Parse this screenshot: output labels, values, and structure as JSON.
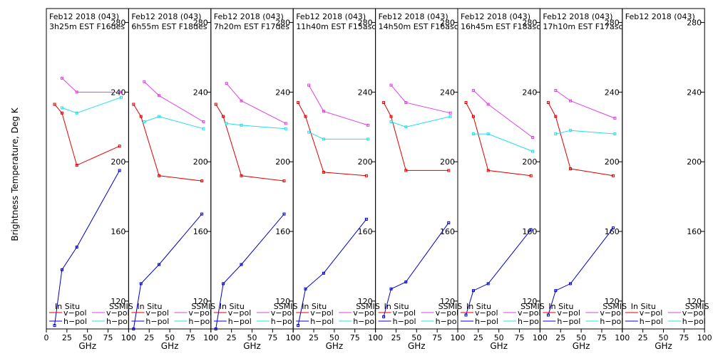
{
  "figure": {
    "ylabel": "Brightness Temperature, Deg K",
    "xlabel": "GHz",
    "legend": {
      "left_header": "In Situ",
      "right_header": "SSMIS",
      "vpol": "v−pol",
      "hpol": "h−pol"
    },
    "x_ticks": [
      "0",
      "25",
      "50",
      "75",
      "100"
    ],
    "y_ticks": [
      "120",
      "160",
      "200",
      "240",
      "280"
    ],
    "colors": {
      "insitu_v": "#e00000",
      "insitu_h": "#0000cc",
      "ssmis_v": "#e040e0",
      "ssmis_h": "#20e0e8",
      "axes": "#000000"
    }
  },
  "chart_data": {
    "type": "line",
    "xlim": [
      0,
      100
    ],
    "ylim": [
      104,
      288
    ],
    "grid": false,
    "legend_position": "bottom",
    "panels": [
      {
        "title1": "Feb12 2018 (043)",
        "title2": "3h25m  EST  F16des",
        "insitu_v": {
          "x": [
            10,
            19,
            37,
            89
          ],
          "y": [
            233,
            228,
            198,
            209
          ]
        },
        "insitu_h": {
          "x": [
            10,
            19,
            37,
            89
          ],
          "y": [
            106,
            138,
            151,
            195
          ]
        },
        "ssmis_v": {
          "x": [
            19,
            37,
            91
          ],
          "y": [
            248,
            240,
            240
          ]
        },
        "ssmis_h": {
          "x": [
            19,
            37,
            91
          ],
          "y": [
            231,
            228,
            237
          ]
        }
      },
      {
        "title1": "Feb12 2018 (043)",
        "title2": "6h55m  EST  F18des",
        "insitu_v": {
          "x": [
            6,
            15,
            37,
            89
          ],
          "y": [
            233,
            226,
            192,
            189
          ]
        },
        "insitu_h": {
          "x": [
            6,
            15,
            37,
            89
          ],
          "y": [
            104,
            130,
            141,
            170
          ]
        },
        "ssmis_v": {
          "x": [
            19,
            37,
            91
          ],
          "y": [
            246,
            238,
            223
          ]
        },
        "ssmis_h": {
          "x": [
            19,
            37,
            91
          ],
          "y": [
            223,
            226,
            219
          ]
        }
      },
      {
        "title1": "Feb12 2018 (043)",
        "title2": "7h20m  EST  F17des",
        "insitu_v": {
          "x": [
            6,
            15,
            37,
            89
          ],
          "y": [
            233,
            226,
            192,
            189
          ]
        },
        "insitu_h": {
          "x": [
            6,
            15,
            37,
            89
          ],
          "y": [
            104,
            130,
            141,
            170
          ]
        },
        "ssmis_v": {
          "x": [
            19,
            37,
            91
          ],
          "y": [
            245,
            235,
            222
          ]
        },
        "ssmis_h": {
          "x": [
            19,
            37,
            91
          ],
          "y": [
            222,
            221,
            219
          ]
        }
      },
      {
        "title1": "Feb12 2018 (043)",
        "title2": "11h40m  EST  F15asc",
        "insitu_v": {
          "x": [
            6,
            15,
            37,
            89
          ],
          "y": [
            234,
            226,
            194,
            192
          ]
        },
        "insitu_h": {
          "x": [
            6,
            15,
            37,
            89
          ],
          "y": [
            106,
            127,
            136,
            167
          ]
        },
        "ssmis_v": {
          "x": [
            19,
            37,
            91
          ],
          "y": [
            244,
            229,
            221
          ]
        },
        "ssmis_h": {
          "x": [
            19,
            37,
            91
          ],
          "y": [
            217,
            213,
            213
          ]
        }
      },
      {
        "title1": "Feb12 2018 (043)",
        "title2": "14h50m  EST  F16asc",
        "insitu_v": {
          "x": [
            10,
            19,
            37,
            89
          ],
          "y": [
            234,
            226,
            195,
            195
          ]
        },
        "insitu_h": {
          "x": [
            10,
            19,
            37,
            89
          ],
          "y": [
            111,
            127,
            131,
            165
          ]
        },
        "ssmis_v": {
          "x": [
            19,
            37,
            91
          ],
          "y": [
            244,
            234,
            228
          ]
        },
        "ssmis_h": {
          "x": [
            19,
            37,
            91
          ],
          "y": [
            223,
            220,
            226
          ]
        }
      },
      {
        "title1": "Feb12 2018 (043)",
        "title2": "16h45m  EST  F18asc",
        "insitu_v": {
          "x": [
            10,
            19,
            37,
            89
          ],
          "y": [
            234,
            226,
            195,
            192
          ]
        },
        "insitu_h": {
          "x": [
            10,
            19,
            37,
            89
          ],
          "y": [
            112,
            126,
            130,
            161
          ]
        },
        "ssmis_v": {
          "x": [
            19,
            37,
            91
          ],
          "y": [
            241,
            233,
            214
          ]
        },
        "ssmis_h": {
          "x": [
            19,
            37,
            91
          ],
          "y": [
            216,
            216,
            206
          ]
        }
      },
      {
        "title1": "Feb12 2018 (043)",
        "title2": "17h10m  EST  F17asc",
        "insitu_v": {
          "x": [
            10,
            19,
            37,
            89
          ],
          "y": [
            234,
            226,
            196,
            192
          ]
        },
        "insitu_h": {
          "x": [
            10,
            19,
            37,
            89
          ],
          "y": [
            112,
            126,
            130,
            162
          ]
        },
        "ssmis_v": {
          "x": [
            19,
            37,
            91
          ],
          "y": [
            241,
            235,
            225
          ]
        },
        "ssmis_h": {
          "x": [
            19,
            37,
            91
          ],
          "y": [
            216,
            218,
            216
          ]
        }
      },
      {
        "title1": "Feb12 2018 (043)",
        "title2": ""
      }
    ]
  }
}
